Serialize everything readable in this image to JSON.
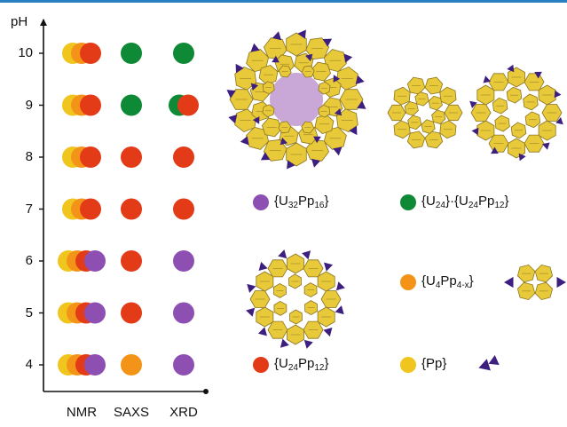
{
  "chart_data": {
    "type": "scatter",
    "ylabel": "pH",
    "y_ticks": [
      4,
      5,
      6,
      7,
      8,
      9,
      10
    ],
    "ylim": [
      3.4,
      10.6
    ],
    "categories": [
      "NMR",
      "SAXS",
      "XRD"
    ],
    "grid": false,
    "colors": {
      "U32Pp16": "#8e4fb3",
      "U24_U24Pp12": "#0e8a36",
      "U4Pp4x": "#f39419",
      "U24Pp12": "#e33a18",
      "Pp": "#f0c61e"
    },
    "points": [
      {
        "category": "NMR",
        "pH": 10,
        "species": [
          "Pp",
          "U4Pp4x",
          "U24Pp12"
        ]
      },
      {
        "category": "NMR",
        "pH": 9,
        "species": [
          "Pp",
          "U4Pp4x",
          "U24Pp12"
        ]
      },
      {
        "category": "NMR",
        "pH": 8,
        "species": [
          "Pp",
          "U4Pp4x",
          "U24Pp12"
        ]
      },
      {
        "category": "NMR",
        "pH": 7,
        "species": [
          "Pp",
          "U4Pp4x",
          "U24Pp12"
        ]
      },
      {
        "category": "NMR",
        "pH": 6,
        "species": [
          "Pp",
          "U4Pp4x",
          "U24Pp12",
          "U32Pp16"
        ]
      },
      {
        "category": "NMR",
        "pH": 5,
        "species": [
          "Pp",
          "U4Pp4x",
          "U24Pp12",
          "U32Pp16"
        ]
      },
      {
        "category": "NMR",
        "pH": 4,
        "species": [
          "Pp",
          "U4Pp4x",
          "U24Pp12",
          "U32Pp16"
        ]
      },
      {
        "category": "SAXS",
        "pH": 10,
        "species": [
          "U24_U24Pp12"
        ]
      },
      {
        "category": "SAXS",
        "pH": 9,
        "species": [
          "U24_U24Pp12"
        ]
      },
      {
        "category": "SAXS",
        "pH": 8,
        "species": [
          "U24Pp12"
        ]
      },
      {
        "category": "SAXS",
        "pH": 7,
        "species": [
          "U24Pp12"
        ]
      },
      {
        "category": "SAXS",
        "pH": 6,
        "species": [
          "U24Pp12"
        ]
      },
      {
        "category": "SAXS",
        "pH": 5,
        "species": [
          "U24Pp12"
        ]
      },
      {
        "category": "SAXS",
        "pH": 4,
        "species": [
          "U4Pp4x"
        ]
      },
      {
        "category": "XRD",
        "pH": 10,
        "species": [
          "U24_U24Pp12"
        ]
      },
      {
        "category": "XRD",
        "pH": 9,
        "species": [
          "U24_U24Pp12",
          "U24Pp12"
        ]
      },
      {
        "category": "XRD",
        "pH": 8,
        "species": [
          "U24Pp12"
        ]
      },
      {
        "category": "XRD",
        "pH": 7,
        "species": [
          "U24Pp12"
        ]
      },
      {
        "category": "XRD",
        "pH": 6,
        "species": [
          "U32Pp16"
        ]
      },
      {
        "category": "XRD",
        "pH": 5,
        "species": [
          "U32Pp16"
        ]
      },
      {
        "category": "XRD",
        "pH": 4,
        "species": [
          "U32Pp16"
        ]
      }
    ],
    "legend": [
      {
        "species": "U32Pp16",
        "pre": "{U",
        "s1": "32",
        "mid": "Pp",
        "s2": "16",
        "post": "}"
      },
      {
        "species": "U24_U24Pp12",
        "pre": "{U",
        "s1": "24",
        "mid": "}·{U",
        "s2": "24",
        "mid2": "Pp",
        "s3": "12",
        "post": "}"
      },
      {
        "species": "U4Pp4x",
        "pre": "{U",
        "s1": "4",
        "mid": "Pp",
        "s2": "4-x",
        "post": "}"
      },
      {
        "species": "U24Pp12",
        "pre": "{U",
        "s1": "24",
        "mid": "Pp",
        "s2": "12",
        "post": "}"
      },
      {
        "species": "Pp",
        "pre": "{Pp}"
      }
    ]
  },
  "illustrations": {
    "colors": {
      "polyhedron": "#e8c93a",
      "polyhedron_edge": "#8a7420",
      "peroxide": "#3d1f80"
    }
  }
}
